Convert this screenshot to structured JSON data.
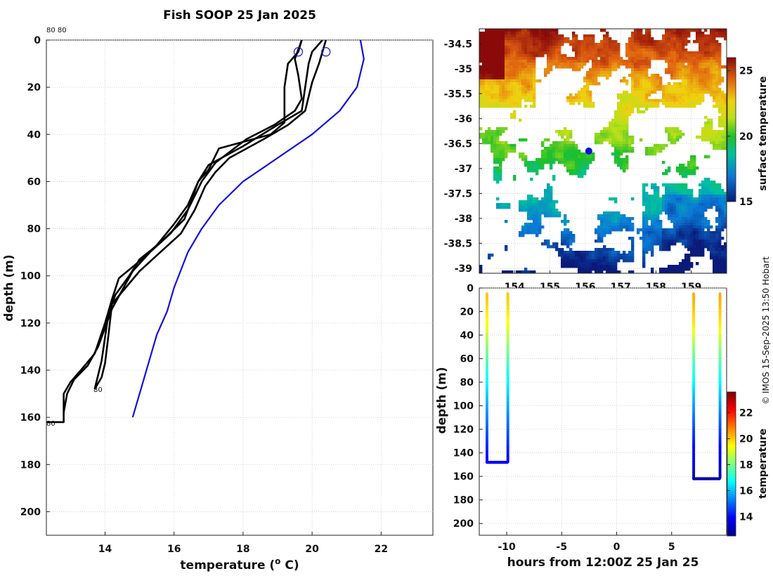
{
  "figure": {
    "title": "Fish SOOP 25 Jan 2025",
    "credit": "© IMOS 15-Sep-2025 13:50 Hobart",
    "annotations": {
      "top_left": "80 80",
      "profile_end_a": "80",
      "profile_end_b": "80"
    }
  },
  "colors": {
    "profile": "#000000",
    "climatology": "#1010e0",
    "marker": "#1010e0",
    "background": "#ffffff"
  },
  "chart_data": [
    {
      "id": "profiles",
      "type": "line",
      "xlabel": "temperature (° C)",
      "ylabel": "depth (m)",
      "xlim": [
        12.3,
        23.5
      ],
      "ylim": [
        210,
        0
      ],
      "xticks": [
        14,
        16,
        18,
        20,
        22
      ],
      "yticks": [
        0,
        20,
        40,
        60,
        80,
        100,
        120,
        140,
        160,
        180,
        200
      ],
      "series": [
        {
          "name": "profile 1",
          "color": "#000000",
          "points": [
            [
              19.7,
              0
            ],
            [
              19.6,
              5
            ],
            [
              19.3,
              10
            ],
            [
              19.2,
              20
            ],
            [
              19.2,
              35
            ],
            [
              18.8,
              40
            ],
            [
              17.3,
              46
            ],
            [
              17.0,
              55
            ],
            [
              16.7,
              60
            ],
            [
              16.4,
              70
            ],
            [
              16.0,
              78
            ],
            [
              15.5,
              87
            ],
            [
              14.9,
              95
            ],
            [
              14.4,
              101
            ],
            [
              14.2,
              110
            ],
            [
              14.0,
              120
            ],
            [
              13.7,
              133
            ],
            [
              13.3,
              140
            ],
            [
              13.0,
              145
            ],
            [
              12.8,
              150
            ],
            [
              12.8,
              162
            ],
            [
              12.3,
              162
            ]
          ]
        },
        {
          "name": "profile 2",
          "color": "#000000",
          "points": [
            [
              19.7,
              0
            ],
            [
              19.5,
              8
            ],
            [
              19.6,
              15
            ],
            [
              19.7,
              25
            ],
            [
              19.5,
              30
            ],
            [
              18.9,
              36
            ],
            [
              18.1,
              42
            ],
            [
              17.2,
              52
            ],
            [
              16.8,
              60
            ],
            [
              16.6,
              66
            ],
            [
              16.4,
              72
            ],
            [
              15.9,
              82
            ],
            [
              15.3,
              90
            ],
            [
              14.8,
              98
            ],
            [
              14.5,
              106
            ],
            [
              14.2,
              114
            ],
            [
              14.0,
              122
            ],
            [
              13.8,
              130
            ],
            [
              13.5,
              138
            ],
            [
              13.1,
              144
            ],
            [
              12.9,
              150
            ],
            [
              12.8,
              158
            ]
          ]
        },
        {
          "name": "profile 3",
          "color": "#000000",
          "points": [
            [
              20.3,
              0
            ],
            [
              20.0,
              5
            ],
            [
              19.9,
              10
            ],
            [
              19.8,
              20
            ],
            [
              19.7,
              30
            ],
            [
              19.0,
              36
            ],
            [
              18.0,
              45
            ],
            [
              17.0,
              53
            ],
            [
              16.7,
              60
            ],
            [
              16.5,
              68
            ],
            [
              16.3,
              76
            ],
            [
              15.6,
              86
            ],
            [
              15.0,
              93
            ],
            [
              14.7,
              100
            ],
            [
              14.3,
              108
            ],
            [
              14.1,
              116
            ],
            [
              14.0,
              126
            ],
            [
              13.9,
              136
            ],
            [
              13.8,
              142
            ],
            [
              13.7,
              148
            ]
          ]
        },
        {
          "name": "profile 4",
          "color": "#000000",
          "points": [
            [
              20.4,
              0
            ],
            [
              20.3,
              5
            ],
            [
              20.2,
              10
            ],
            [
              20.0,
              18
            ],
            [
              19.8,
              30
            ],
            [
              19.3,
              36
            ],
            [
              18.6,
              42
            ],
            [
              17.6,
              50
            ],
            [
              17.2,
              56
            ],
            [
              16.9,
              62
            ],
            [
              16.6,
              72
            ],
            [
              16.2,
              82
            ],
            [
              15.6,
              90
            ],
            [
              15.0,
              98
            ],
            [
              14.6,
              105
            ],
            [
              14.2,
              112
            ],
            [
              14.1,
              125
            ],
            [
              14.0,
              137
            ],
            [
              13.9,
              143
            ],
            [
              13.7,
              148
            ]
          ]
        },
        {
          "name": "climatology",
          "color": "#1010e0",
          "points": [
            [
              21.4,
              0
            ],
            [
              21.5,
              8
            ],
            [
              21.3,
              20
            ],
            [
              20.8,
              30
            ],
            [
              20.0,
              40
            ],
            [
              19.0,
              50
            ],
            [
              18.0,
              60
            ],
            [
              17.3,
              70
            ],
            [
              16.8,
              80
            ],
            [
              16.4,
              90
            ],
            [
              16.0,
              105
            ],
            [
              15.8,
              115
            ],
            [
              15.5,
              125
            ],
            [
              15.3,
              135
            ],
            [
              15.1,
              145
            ],
            [
              14.8,
              160
            ]
          ]
        }
      ],
      "markers": [
        {
          "x": 19.6,
          "y": 5
        },
        {
          "x": 20.4,
          "y": 5
        }
      ]
    },
    {
      "id": "surface_map",
      "type": "heatmap",
      "colorbar_label": "surface temperature",
      "colorbar_ticks": [
        15,
        20,
        25
      ],
      "color_range": [
        15,
        26
      ],
      "xlim": [
        153.0,
        160.0
      ],
      "ylim": [
        -39.1,
        -34.2
      ],
      "xticks": [
        154,
        155,
        156,
        157,
        158,
        159
      ],
      "xtick_labels": [
        "154",
        "155",
        "156",
        "157",
        "158",
        "159"
      ],
      "yticks": [
        -34.5,
        -35,
        -35.5,
        -36,
        -36.5,
        -37,
        -37.5,
        -38,
        -38.5,
        -39
      ],
      "ytick_labels": [
        "-34.5",
        "-35",
        "-35.5",
        "-36",
        "-36.5",
        "-37",
        "-37.5",
        "-38",
        "-38.5",
        "-39"
      ],
      "position_marker": {
        "lon": 156.1,
        "lat": -36.65
      }
    },
    {
      "id": "time_depth",
      "type": "scatter",
      "xlabel": "hours from 12:00Z 25 Jan 25",
      "ylabel": "depth (m)",
      "colorbar_label": "temperature",
      "colorbar_ticks": [
        14,
        16,
        18,
        20,
        22
      ],
      "color_range": [
        12.5,
        23.6
      ],
      "xlim": [
        -12.5,
        10
      ],
      "ylim": [
        210,
        0
      ],
      "xticks": [
        -10,
        -5,
        0,
        5
      ],
      "yticks": [
        0,
        20,
        40,
        60,
        80,
        100,
        120,
        140,
        160,
        180,
        200
      ],
      "casts": [
        {
          "t_down": -11.8,
          "t_up": -9.9,
          "max_depth": 148,
          "surface_temp": 20.0,
          "bottom_temp": 13.8
        },
        {
          "t_down": 7.0,
          "t_up": 9.4,
          "max_depth": 162,
          "surface_temp": 20.3,
          "bottom_temp": 12.8
        }
      ]
    }
  ]
}
